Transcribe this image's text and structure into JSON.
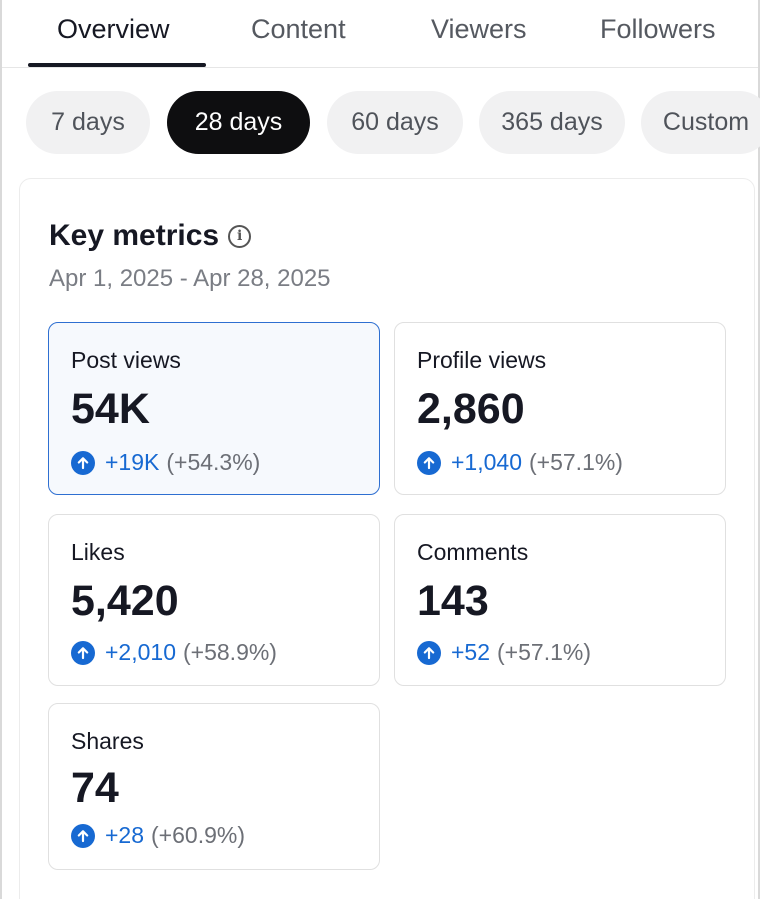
{
  "tabs": [
    {
      "label": "Overview",
      "active": true
    },
    {
      "label": "Content",
      "active": false
    },
    {
      "label": "Viewers",
      "active": false
    },
    {
      "label": "Followers",
      "active": false
    }
  ],
  "ranges": [
    {
      "label": "7 days",
      "active": false
    },
    {
      "label": "28 days",
      "active": true
    },
    {
      "label": "60 days",
      "active": false
    },
    {
      "label": "365 days",
      "active": false
    },
    {
      "label": "Custom",
      "active": false
    }
  ],
  "key_metrics": {
    "title": "Key metrics",
    "info_icon": "info-icon",
    "date_range": "Apr 1, 2025 - Apr 28, 2025",
    "metrics": [
      {
        "label": "Post views",
        "value": "54K",
        "delta": "+19K",
        "delta_pct": "(+54.3%)",
        "selected": true
      },
      {
        "label": "Profile views",
        "value": "2,860",
        "delta": "+1,040",
        "delta_pct": "(+57.1%)",
        "selected": false
      },
      {
        "label": "Likes",
        "value": "5,420",
        "delta": "+2,010",
        "delta_pct": "(+58.9%)",
        "selected": false
      },
      {
        "label": "Comments",
        "value": "143",
        "delta": "+52",
        "delta_pct": "(+57.1%)",
        "selected": false
      },
      {
        "label": "Shares",
        "value": "74",
        "delta": "+28",
        "delta_pct": "(+60.9%)",
        "selected": false
      }
    ]
  },
  "colors": {
    "accent_blue": "#1769d2",
    "selected_border": "#2e6fd1",
    "active_pill": "#0e0e10"
  }
}
